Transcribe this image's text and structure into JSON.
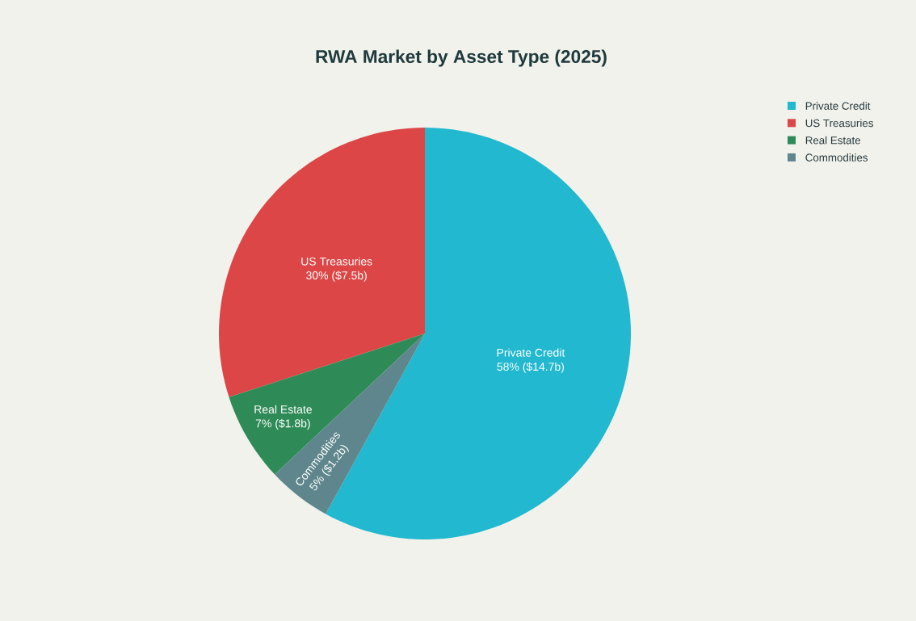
{
  "chart_data": {
    "type": "pie",
    "title": "RWA Market by Asset Type (2025)",
    "categories": [
      "Private Credit",
      "US Treasuries",
      "Real Estate",
      "Commodities"
    ],
    "values": [
      58,
      30,
      7,
      5
    ],
    "colors": [
      "#22b8cf",
      "#dc4646",
      "#2e8b57",
      "#5e868c"
    ],
    "value_labels": [
      "58% ($14.7b)",
      "30% ($7.5b)",
      "7% ($1.8b)",
      "5% ($1.2b)"
    ],
    "legend": "top right"
  }
}
